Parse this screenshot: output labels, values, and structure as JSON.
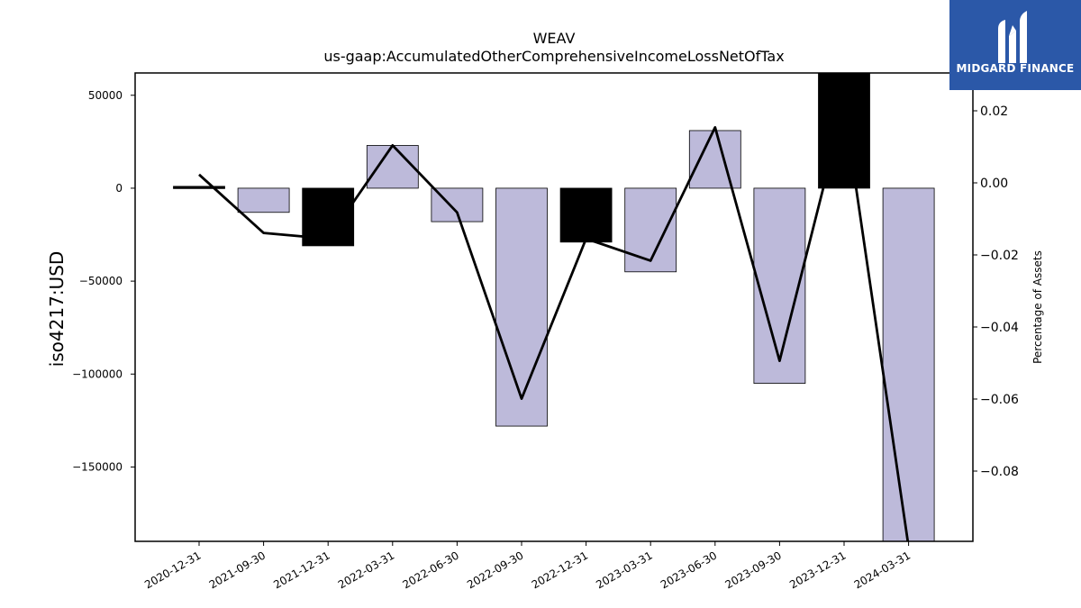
{
  "chart_data": {
    "type": "bar",
    "title": "WEAV",
    "subtitle": "us-gaap:AccumulatedOtherComprehensiveIncomeLossNetOfTax",
    "ylabel": "iso4217:USD",
    "y2label": "Percentage of Assets",
    "categories": [
      "2020-12-31",
      "2021-09-30",
      "2021-12-31",
      "2022-03-31",
      "2022-06-30",
      "2022-09-30",
      "2022-12-31",
      "2023-03-31",
      "2023-06-30",
      "2023-09-30",
      "2023-12-31",
      "2024-03-31"
    ],
    "values": [
      1000,
      -13000,
      -31000,
      23000,
      -18000,
      -128000,
      -29000,
      -45000,
      31000,
      -105000,
      63000,
      -190000
    ],
    "bar_colors": [
      "#000000",
      "#bdbada",
      "#000000",
      "#bdbada",
      "#bdbada",
      "#bdbada",
      "#000000",
      "#bdbada",
      "#bdbada",
      "#bdbada",
      "#000000",
      "#bdbada"
    ],
    "line_values": [
      0.0023,
      -0.0139,
      -0.0155,
      0.0104,
      -0.0082,
      -0.0599,
      -0.0155,
      -0.0216,
      0.0154,
      -0.0494,
      0.0214,
      -0.101
    ],
    "ylim": [
      -190000,
      62000
    ],
    "y2lim": [
      -0.0995,
      0.0305
    ],
    "yticks": [
      50000,
      0,
      -50000,
      -100000,
      -150000
    ],
    "y2ticks": [
      0.02,
      0.0,
      -0.02,
      -0.04,
      -0.06,
      -0.08
    ],
    "grid": false
  },
  "logo": {
    "text": "MIDGARD FINANCE"
  }
}
